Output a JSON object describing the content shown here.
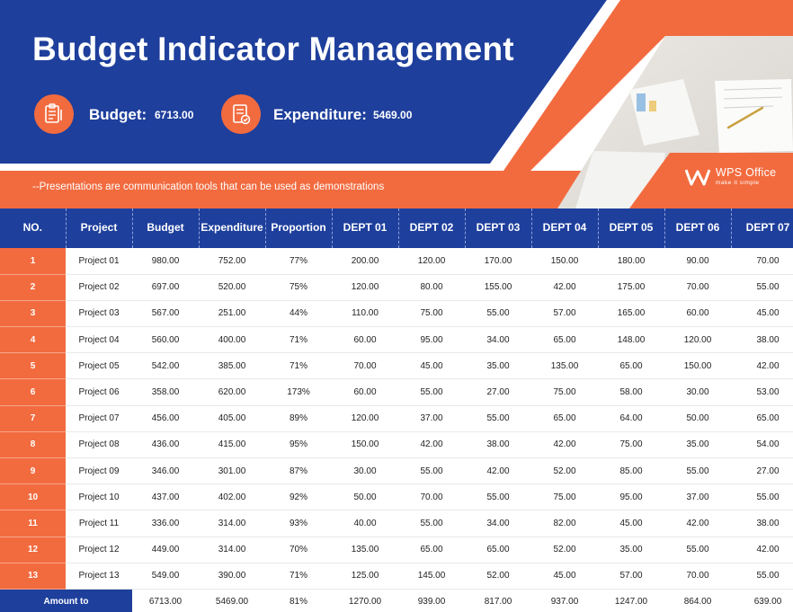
{
  "title": "Budget Indicator Management",
  "budget": {
    "label": "Budget:",
    "value": "6713.00",
    "icon": "clipboard-pen-icon"
  },
  "expenditure": {
    "label": "Expenditure:",
    "value": "5469.00",
    "icon": "document-check-icon"
  },
  "tagline": "--Presentations are communication tools that can be used as demonstrations",
  "logo": {
    "name": "WPS Office",
    "slogan": "make it simple"
  },
  "colors": {
    "navy": "#1e3f9c",
    "orange": "#f26b3f"
  },
  "table": {
    "headers": [
      "NO.",
      "Project",
      "Budget",
      "Expenditure",
      "Proportion",
      "DEPT 01",
      "DEPT 02",
      "DEPT 03",
      "DEPT 04",
      "DEPT 05",
      "DEPT 06",
      "DEPT 07"
    ],
    "rows": [
      [
        "1",
        "Project 01",
        "980.00",
        "752.00",
        "77%",
        "200.00",
        "120.00",
        "170.00",
        "150.00",
        "180.00",
        "90.00",
        "70.00"
      ],
      [
        "2",
        "Project 02",
        "697.00",
        "520.00",
        "75%",
        "120.00",
        "80.00",
        "155.00",
        "42.00",
        "175.00",
        "70.00",
        "55.00"
      ],
      [
        "3",
        "Project 03",
        "567.00",
        "251.00",
        "44%",
        "110.00",
        "75.00",
        "55.00",
        "57.00",
        "165.00",
        "60.00",
        "45.00"
      ],
      [
        "4",
        "Project 04",
        "560.00",
        "400.00",
        "71%",
        "60.00",
        "95.00",
        "34.00",
        "65.00",
        "148.00",
        "120.00",
        "38.00"
      ],
      [
        "5",
        "Project 05",
        "542.00",
        "385.00",
        "71%",
        "70.00",
        "45.00",
        "35.00",
        "135.00",
        "65.00",
        "150.00",
        "42.00"
      ],
      [
        "6",
        "Project 06",
        "358.00",
        "620.00",
        "173%",
        "60.00",
        "55.00",
        "27.00",
        "75.00",
        "58.00",
        "30.00",
        "53.00"
      ],
      [
        "7",
        "Project 07",
        "456.00",
        "405.00",
        "89%",
        "120.00",
        "37.00",
        "55.00",
        "65.00",
        "64.00",
        "50.00",
        "65.00"
      ],
      [
        "8",
        "Project 08",
        "436.00",
        "415.00",
        "95%",
        "150.00",
        "42.00",
        "38.00",
        "42.00",
        "75.00",
        "35.00",
        "54.00"
      ],
      [
        "9",
        "Project 09",
        "346.00",
        "301.00",
        "87%",
        "30.00",
        "55.00",
        "42.00",
        "52.00",
        "85.00",
        "55.00",
        "27.00"
      ],
      [
        "10",
        "Project 10",
        "437.00",
        "402.00",
        "92%",
        "50.00",
        "70.00",
        "55.00",
        "75.00",
        "95.00",
        "37.00",
        "55.00"
      ],
      [
        "11",
        "Project 11",
        "336.00",
        "314.00",
        "93%",
        "40.00",
        "55.00",
        "34.00",
        "82.00",
        "45.00",
        "42.00",
        "38.00"
      ],
      [
        "12",
        "Project 12",
        "449.00",
        "314.00",
        "70%",
        "135.00",
        "65.00",
        "65.00",
        "52.00",
        "35.00",
        "55.00",
        "42.00"
      ],
      [
        "13",
        "Project 13",
        "549.00",
        "390.00",
        "71%",
        "125.00",
        "145.00",
        "52.00",
        "45.00",
        "57.00",
        "70.00",
        "55.00"
      ]
    ],
    "total": {
      "label": "Amount to",
      "values": [
        "6713.00",
        "5469.00",
        "81%",
        "1270.00",
        "939.00",
        "817.00",
        "937.00",
        "1247.00",
        "864.00",
        "639.00"
      ]
    }
  }
}
